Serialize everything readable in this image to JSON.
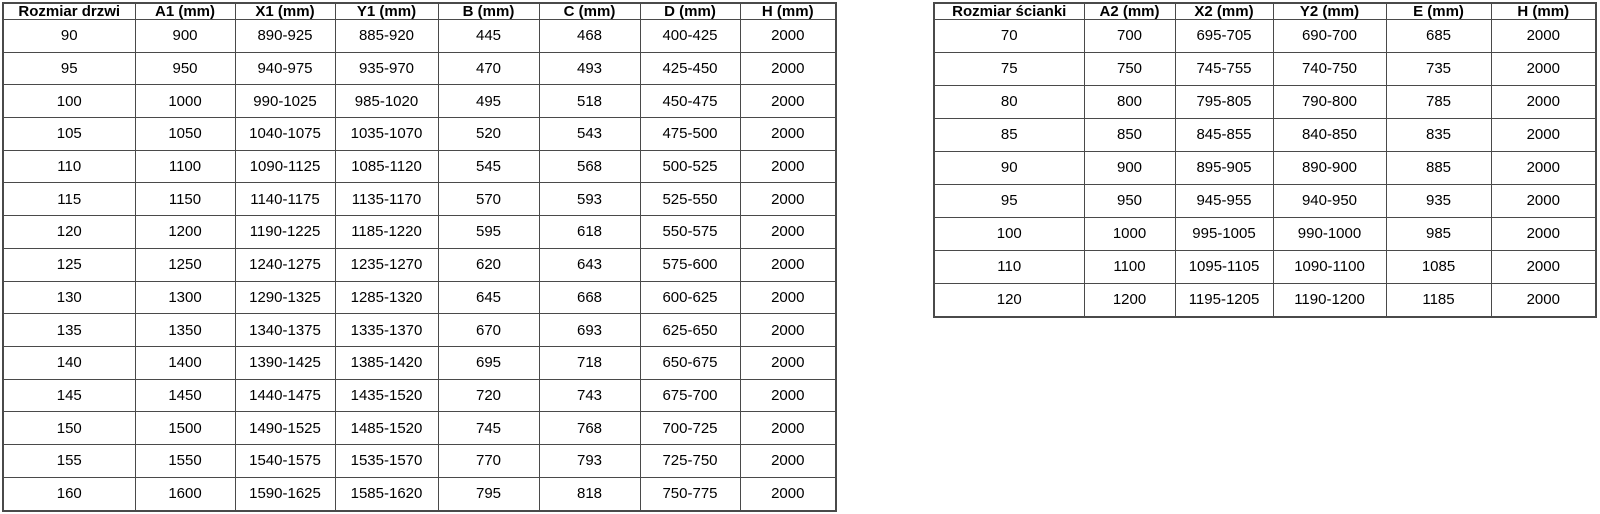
{
  "page": {
    "background": "#ffffff",
    "table_border_color": "#4a4a4a",
    "text_color": "#000000"
  },
  "tables": [
    {
      "id": "door-sizes",
      "headers": [
        "Rozmiar drzwi",
        "A1 (mm)",
        "X1 (mm)",
        "Y1 (mm)",
        "B (mm)",
        "C (mm)",
        "D (mm)",
        "H (mm)"
      ],
      "rows": [
        [
          "90",
          "900",
          "890-925",
          "885-920",
          "445",
          "468",
          "400-425",
          "2000"
        ],
        [
          "95",
          "950",
          "940-975",
          "935-970",
          "470",
          "493",
          "425-450",
          "2000"
        ],
        [
          "100",
          "1000",
          "990-1025",
          "985-1020",
          "495",
          "518",
          "450-475",
          "2000"
        ],
        [
          "105",
          "1050",
          "1040-1075",
          "1035-1070",
          "520",
          "543",
          "475-500",
          "2000"
        ],
        [
          "110",
          "1100",
          "1090-1125",
          "1085-1120",
          "545",
          "568",
          "500-525",
          "2000"
        ],
        [
          "115",
          "1150",
          "1140-1175",
          "1135-1170",
          "570",
          "593",
          "525-550",
          "2000"
        ],
        [
          "120",
          "1200",
          "1190-1225",
          "1185-1220",
          "595",
          "618",
          "550-575",
          "2000"
        ],
        [
          "125",
          "1250",
          "1240-1275",
          "1235-1270",
          "620",
          "643",
          "575-600",
          "2000"
        ],
        [
          "130",
          "1300",
          "1290-1325",
          "1285-1320",
          "645",
          "668",
          "600-625",
          "2000"
        ],
        [
          "135",
          "1350",
          "1340-1375",
          "1335-1370",
          "670",
          "693",
          "625-650",
          "2000"
        ],
        [
          "140",
          "1400",
          "1390-1425",
          "1385-1420",
          "695",
          "718",
          "650-675",
          "2000"
        ],
        [
          "145",
          "1450",
          "1440-1475",
          "1435-1520",
          "720",
          "743",
          "675-700",
          "2000"
        ],
        [
          "150",
          "1500",
          "1490-1525",
          "1485-1520",
          "745",
          "768",
          "700-725",
          "2000"
        ],
        [
          "155",
          "1550",
          "1540-1575",
          "1535-1570",
          "770",
          "793",
          "725-750",
          "2000"
        ],
        [
          "160",
          "1600",
          "1590-1625",
          "1585-1620",
          "795",
          "818",
          "750-775",
          "2000"
        ]
      ]
    },
    {
      "id": "wall-sizes",
      "headers": [
        "Rozmiar ścianki",
        "A2 (mm)",
        "X2 (mm)",
        "Y2 (mm)",
        "E (mm)",
        "H (mm)"
      ],
      "rows": [
        [
          "70",
          "700",
          "695-705",
          "690-700",
          "685",
          "2000"
        ],
        [
          "75",
          "750",
          "745-755",
          "740-750",
          "735",
          "2000"
        ],
        [
          "80",
          "800",
          "795-805",
          "790-800",
          "785",
          "2000"
        ],
        [
          "85",
          "850",
          "845-855",
          "840-850",
          "835",
          "2000"
        ],
        [
          "90",
          "900",
          "895-905",
          "890-900",
          "885",
          "2000"
        ],
        [
          "95",
          "950",
          "945-955",
          "940-950",
          "935",
          "2000"
        ],
        [
          "100",
          "1000",
          "995-1005",
          "990-1000",
          "985",
          "2000"
        ],
        [
          "110",
          "1100",
          "1095-1105",
          "1090-1100",
          "1085",
          "2000"
        ],
        [
          "120",
          "1200",
          "1195-1205",
          "1190-1200",
          "1185",
          "2000"
        ]
      ]
    }
  ]
}
